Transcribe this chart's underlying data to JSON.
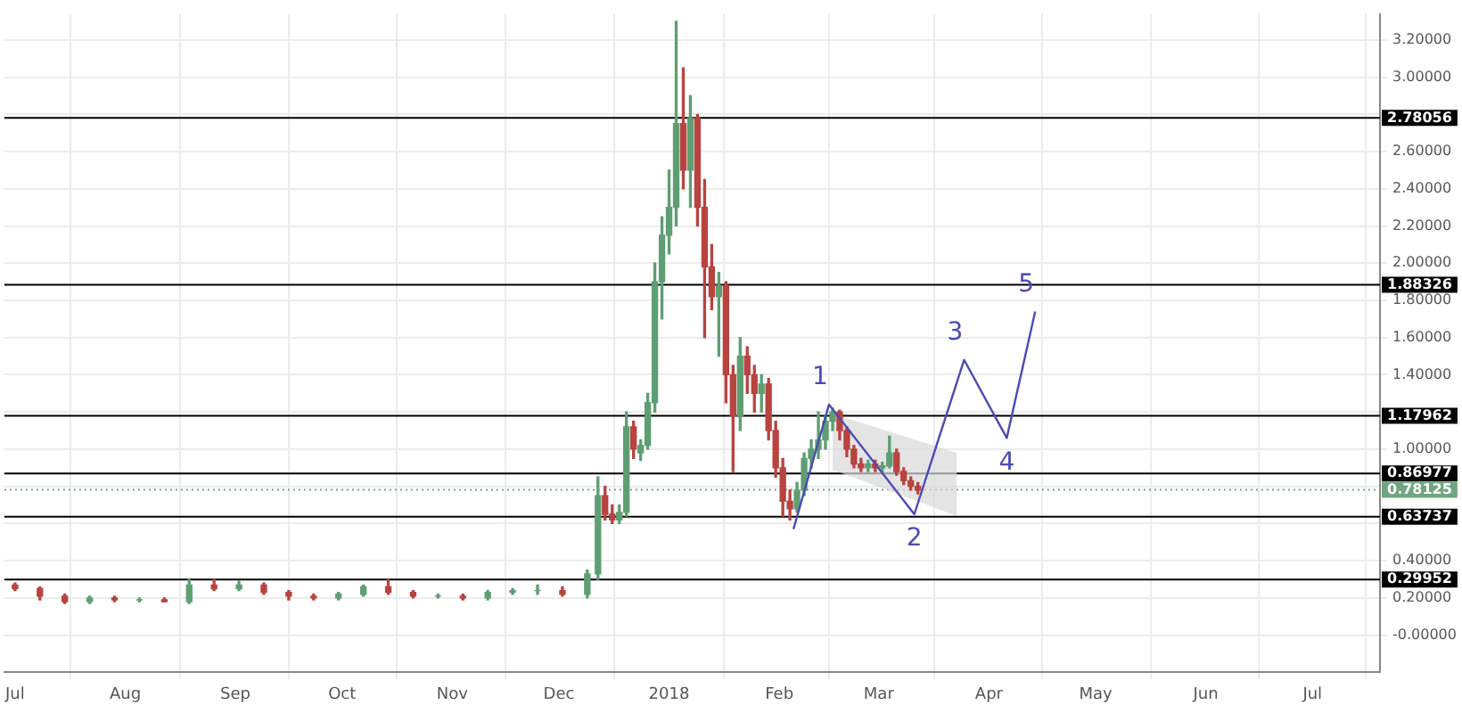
{
  "chart_data": {
    "type": "candlestick",
    "x": [
      "2017-07-01",
      "2017-07-08",
      "2017-07-15",
      "2017-07-22",
      "2017-07-29",
      "2017-08-05",
      "2017-08-12",
      "2017-08-19",
      "2017-08-26",
      "2017-09-02",
      "2017-09-09",
      "2017-09-16",
      "2017-09-23",
      "2017-09-30",
      "2017-10-07",
      "2017-10-14",
      "2017-10-21",
      "2017-10-28",
      "2017-11-04",
      "2017-11-11",
      "2017-11-18",
      "2017-11-25",
      "2017-12-02",
      "2017-12-09",
      "2017-12-12",
      "2017-12-14",
      "2017-12-16",
      "2017-12-18",
      "2017-12-20",
      "2017-12-22",
      "2017-12-24",
      "2017-12-26",
      "2017-12-28",
      "2017-12-30",
      "2018-01-01",
      "2018-01-03",
      "2018-01-05",
      "2018-01-07",
      "2018-01-09",
      "2018-01-11",
      "2018-01-13",
      "2018-01-15",
      "2018-01-17",
      "2018-01-19",
      "2018-01-21",
      "2018-01-23",
      "2018-01-25",
      "2018-01-27",
      "2018-01-29",
      "2018-01-31",
      "2018-02-02",
      "2018-02-04",
      "2018-02-06",
      "2018-02-08",
      "2018-02-10",
      "2018-02-12",
      "2018-02-14",
      "2018-02-16",
      "2018-02-18",
      "2018-02-20",
      "2018-02-22",
      "2018-02-24",
      "2018-02-26",
      "2018-02-28",
      "2018-03-02",
      "2018-03-04",
      "2018-03-06",
      "2018-03-08",
      "2018-03-10",
      "2018-03-12"
    ],
    "ohlc": [
      [
        0.27,
        0.28,
        0.24,
        0.25
      ],
      [
        0.25,
        0.26,
        0.19,
        0.21
      ],
      [
        0.21,
        0.22,
        0.17,
        0.18
      ],
      [
        0.18,
        0.21,
        0.17,
        0.2
      ],
      [
        0.2,
        0.21,
        0.18,
        0.19
      ],
      [
        0.19,
        0.2,
        0.18,
        0.19
      ],
      [
        0.19,
        0.2,
        0.18,
        0.18
      ],
      [
        0.18,
        0.3,
        0.17,
        0.27
      ],
      [
        0.27,
        0.3,
        0.24,
        0.25
      ],
      [
        0.25,
        0.29,
        0.24,
        0.27
      ],
      [
        0.27,
        0.28,
        0.22,
        0.23
      ],
      [
        0.23,
        0.24,
        0.19,
        0.21
      ],
      [
        0.21,
        0.22,
        0.19,
        0.2
      ],
      [
        0.2,
        0.23,
        0.19,
        0.22
      ],
      [
        0.22,
        0.27,
        0.21,
        0.26
      ],
      [
        0.26,
        0.3,
        0.22,
        0.23
      ],
      [
        0.23,
        0.24,
        0.2,
        0.21
      ],
      [
        0.21,
        0.22,
        0.2,
        0.21
      ],
      [
        0.21,
        0.22,
        0.19,
        0.2
      ],
      [
        0.2,
        0.24,
        0.19,
        0.23
      ],
      [
        0.23,
        0.25,
        0.22,
        0.24
      ],
      [
        0.24,
        0.27,
        0.22,
        0.24
      ],
      [
        0.24,
        0.26,
        0.21,
        0.22
      ],
      [
        0.22,
        0.35,
        0.2,
        0.33
      ],
      [
        0.33,
        0.85,
        0.3,
        0.75
      ],
      [
        0.75,
        0.8,
        0.62,
        0.65
      ],
      [
        0.65,
        0.7,
        0.6,
        0.62
      ],
      [
        0.62,
        0.7,
        0.6,
        0.66
      ],
      [
        0.66,
        1.2,
        0.64,
        1.12
      ],
      [
        1.12,
        1.15,
        0.95,
        1.0
      ],
      [
        0.98,
        1.05,
        0.94,
        1.02
      ],
      [
        1.02,
        1.3,
        1.0,
        1.25
      ],
      [
        1.25,
        2.0,
        1.2,
        1.9
      ],
      [
        1.9,
        2.25,
        1.7,
        2.15
      ],
      [
        2.15,
        2.5,
        2.05,
        2.3
      ],
      [
        2.3,
        3.3,
        2.2,
        2.75
      ],
      [
        2.75,
        3.05,
        2.4,
        2.5
      ],
      [
        2.5,
        2.9,
        2.3,
        2.78
      ],
      [
        2.78,
        2.8,
        2.2,
        2.3
      ],
      [
        2.3,
        2.45,
        1.6,
        1.98
      ],
      [
        1.98,
        2.1,
        1.75,
        1.82
      ],
      [
        1.82,
        1.95,
        1.5,
        1.88
      ],
      [
        1.88,
        1.9,
        1.25,
        1.4
      ],
      [
        1.4,
        1.45,
        0.88,
        1.18
      ],
      [
        1.18,
        1.6,
        1.1,
        1.5
      ],
      [
        1.5,
        1.55,
        1.3,
        1.4
      ],
      [
        1.4,
        1.45,
        1.2,
        1.3
      ],
      [
        1.3,
        1.4,
        1.2,
        1.35
      ],
      [
        1.35,
        1.38,
        1.05,
        1.1
      ],
      [
        1.1,
        1.15,
        0.85,
        0.9
      ],
      [
        0.9,
        0.95,
        0.64,
        0.72
      ],
      [
        0.72,
        0.78,
        0.62,
        0.68
      ],
      [
        0.68,
        0.82,
        0.66,
        0.78
      ],
      [
        0.78,
        0.98,
        0.75,
        0.95
      ],
      [
        0.95,
        1.05,
        0.9,
        1.0
      ],
      [
        1.0,
        1.2,
        0.95,
        1.05
      ],
      [
        1.05,
        1.18,
        1.0,
        1.15
      ],
      [
        1.15,
        1.22,
        1.1,
        1.2
      ],
      [
        1.2,
        1.21,
        1.05,
        1.1
      ],
      [
        1.1,
        1.12,
        0.96,
        1.0
      ],
      [
        1.0,
        1.02,
        0.9,
        0.92
      ],
      [
        0.92,
        0.95,
        0.88,
        0.9
      ],
      [
        0.9,
        0.94,
        0.88,
        0.92
      ],
      [
        0.92,
        0.94,
        0.88,
        0.9
      ],
      [
        0.9,
        0.93,
        0.88,
        0.91
      ],
      [
        0.91,
        1.07,
        0.9,
        0.98
      ],
      [
        0.98,
        1.0,
        0.86,
        0.88
      ],
      [
        0.88,
        0.9,
        0.81,
        0.83
      ],
      [
        0.83,
        0.85,
        0.78,
        0.8
      ],
      [
        0.8,
        0.82,
        0.76,
        0.78
      ]
    ],
    "series": [
      {
        "type": "line",
        "color": "#4b4bb4",
        "x": [
          "2018-02-05",
          "2018-02-15",
          "2018-03-11",
          "2018-03-25",
          "2018-04-06",
          "2018-04-14"
        ],
        "values": [
          0.57,
          1.24,
          0.65,
          1.48,
          1.06,
          1.74
        ]
      },
      {
        "type": "area",
        "color": "#d9d9d9",
        "x": [
          "2018-02-16",
          "2018-03-23"
        ],
        "values": [
          null,
          null
        ],
        "lower": [
          0.89,
          0.64
        ],
        "upper": [
          1.19,
          0.98
        ]
      }
    ],
    "annotations": [
      {
        "text": "1",
        "x": "2018-02-15",
        "y": 1.24
      },
      {
        "text": "2",
        "x": "2018-03-11",
        "y": 0.65
      },
      {
        "text": "3",
        "x": "2018-03-25",
        "y": 1.48
      },
      {
        "text": "4",
        "x": "2018-04-06",
        "y": 1.06
      },
      {
        "text": "5",
        "x": "2018-04-14",
        "y": 1.74
      }
    ],
    "ref_lines": [
      {
        "axis": "y",
        "value": 2.78056,
        "label": "2.78056",
        "color": "#000000"
      },
      {
        "axis": "y",
        "value": 1.88326,
        "label": "1.88326",
        "color": "#000000"
      },
      {
        "axis": "y",
        "value": 1.17962,
        "label": "1.17962",
        "color": "#000000"
      },
      {
        "axis": "y",
        "value": 0.86977,
        "label": "0.86977",
        "color": "#000000"
      },
      {
        "axis": "y",
        "value": 0.78125,
        "label": "0.78125",
        "color": "#6fa57f",
        "line_style": "dotted"
      },
      {
        "axis": "y",
        "value": 0.63737,
        "label": "0.63737",
        "color": "#000000"
      },
      {
        "axis": "y",
        "value": 0.29952,
        "label": "0.29952",
        "color": "#000000"
      }
    ],
    "xlim": [
      "2017-06-28",
      "2018-07-20"
    ],
    "xticks": [
      {
        "value": "2017-07-01",
        "label": "Jul"
      },
      {
        "value": "2017-08-01",
        "label": "Aug"
      },
      {
        "value": "2017-09-01",
        "label": "Sep"
      },
      {
        "value": "2017-10-01",
        "label": "Oct"
      },
      {
        "value": "2017-11-01",
        "label": "Nov"
      },
      {
        "value": "2017-12-01",
        "label": "Dec"
      },
      {
        "value": "2018-01-01",
        "label": "2018"
      },
      {
        "value": "2018-02-01",
        "label": "Feb"
      },
      {
        "value": "2018-03-01",
        "label": "Mar"
      },
      {
        "value": "2018-04-01",
        "label": "Apr"
      },
      {
        "value": "2018-05-01",
        "label": "May"
      },
      {
        "value": "2018-06-01",
        "label": "Jun"
      },
      {
        "value": "2018-07-01",
        "label": "Jul"
      }
    ],
    "ylim": [
      -0.2,
      3.34
    ],
    "yticks": [
      {
        "value": 0,
        "label": "-0.00000"
      },
      {
        "value": 0.2,
        "label": "0.20000"
      },
      {
        "value": 0.4,
        "label": "0.40000"
      },
      {
        "value": 0.6,
        "label": null
      },
      {
        "value": 0.8,
        "label": null
      },
      {
        "value": 1.0,
        "label": "1.00000"
      },
      {
        "value": 1.2,
        "label": null
      },
      {
        "value": 1.4,
        "label": "1.40000"
      },
      {
        "value": 1.6,
        "label": "1.60000"
      },
      {
        "value": 1.8,
        "label": "1.80000"
      },
      {
        "value": 2.0,
        "label": "2.00000"
      },
      {
        "value": 2.2,
        "label": "2.20000"
      },
      {
        "value": 2.4,
        "label": "2.40000"
      },
      {
        "value": 2.6,
        "label": "2.60000"
      },
      {
        "value": 2.8,
        "label": null
      },
      {
        "value": 3.0,
        "label": "3.00000"
      },
      {
        "value": 3.2,
        "label": "3.20000"
      }
    ],
    "grid": true,
    "legend": false
  }
}
